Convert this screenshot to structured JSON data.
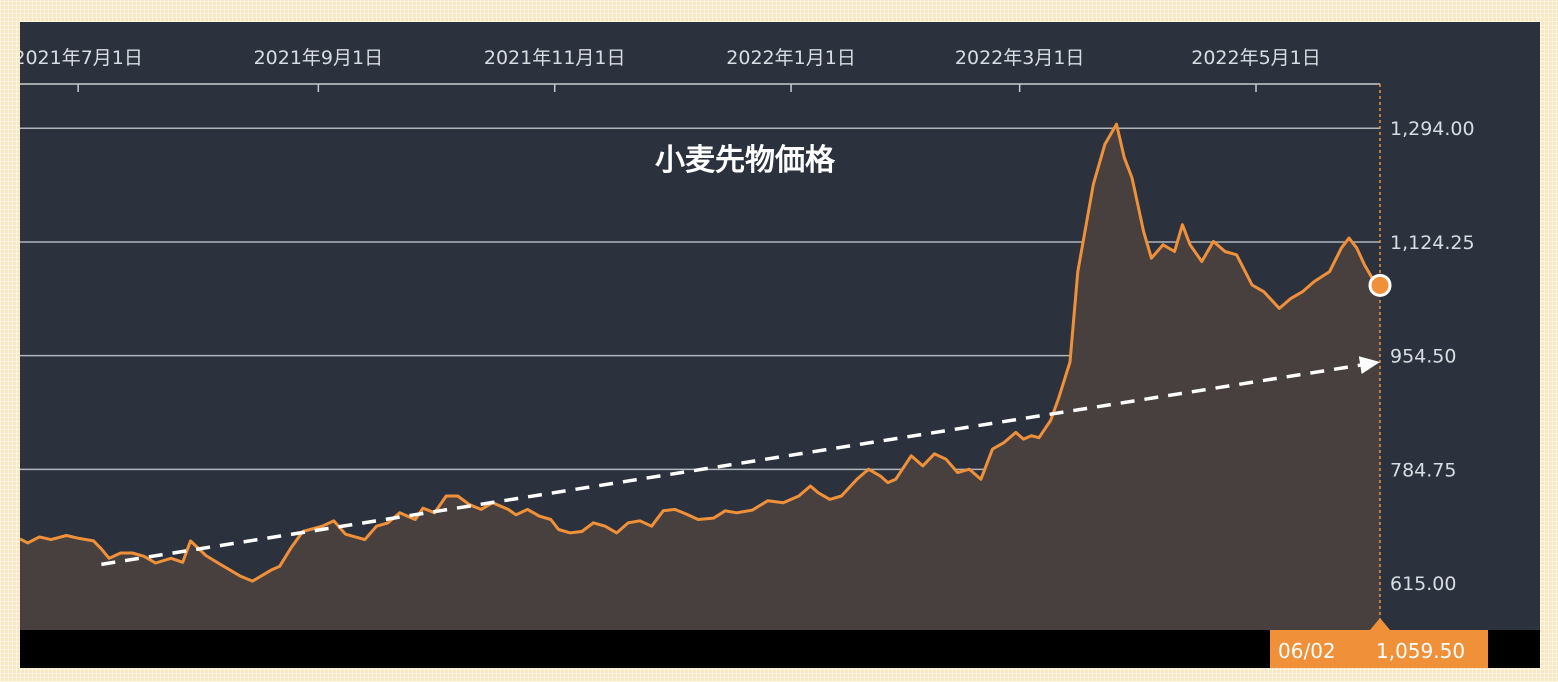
{
  "colors": {
    "background": "#2b323d",
    "line": "#f0913a",
    "area": "#48403f",
    "grid": "#c8ccd2",
    "trend": "#ffffff",
    "readout_bg": "#f0913a",
    "bottom_bar": "#000000"
  },
  "chart_data": {
    "type": "area",
    "title": "小麦先物価格",
    "xlabel": "",
    "ylabel": "",
    "x_tick_labels": [
      "2021年7月1日",
      "2021年9月1日",
      "2021年11月1日",
      "2022年1月1日",
      "2022年3月1日",
      "2022年5月1日"
    ],
    "x_tick_dates": [
      "2021-07-01",
      "2021-09-01",
      "2021-11-01",
      "2022-01-01",
      "2022-03-01",
      "2022-05-01"
    ],
    "y_ticks": [
      "1,294.00",
      "1,124.25",
      "954.50",
      "784.75",
      "615.00"
    ],
    "y_tick_values": [
      1294,
      1124.25,
      954.5,
      784.75,
      615
    ],
    "xlim": [
      "2021-06-16",
      "2022-06-02"
    ],
    "ylim": [
      545,
      1360
    ],
    "grid": true,
    "series": [
      {
        "name": "",
        "points": [
          [
            "2021-06-16",
            681
          ],
          [
            "2021-06-18",
            675
          ],
          [
            "2021-06-21",
            684
          ],
          [
            "2021-06-24",
            680
          ],
          [
            "2021-06-28",
            686
          ],
          [
            "2021-07-01",
            682
          ],
          [
            "2021-07-05",
            678
          ],
          [
            "2021-07-07",
            666
          ],
          [
            "2021-07-09",
            652
          ],
          [
            "2021-07-12",
            660
          ],
          [
            "2021-07-15",
            660
          ],
          [
            "2021-07-18",
            655
          ],
          [
            "2021-07-21",
            645
          ],
          [
            "2021-07-25",
            652
          ],
          [
            "2021-07-28",
            646
          ],
          [
            "2021-07-30",
            678
          ],
          [
            "2021-08-03",
            656
          ],
          [
            "2021-08-07",
            642
          ],
          [
            "2021-08-12",
            625
          ],
          [
            "2021-08-15",
            618
          ],
          [
            "2021-08-20",
            635
          ],
          [
            "2021-08-22",
            640
          ],
          [
            "2021-08-25",
            668
          ],
          [
            "2021-08-28",
            692
          ],
          [
            "2021-09-02",
            700
          ],
          [
            "2021-09-05",
            708
          ],
          [
            "2021-09-08",
            688
          ],
          [
            "2021-09-13",
            680
          ],
          [
            "2021-09-16",
            700
          ],
          [
            "2021-09-19",
            705
          ],
          [
            "2021-09-22",
            720
          ],
          [
            "2021-09-26",
            710
          ],
          [
            "2021-09-28",
            727
          ],
          [
            "2021-10-01",
            720
          ],
          [
            "2021-10-04",
            745
          ],
          [
            "2021-10-07",
            745
          ],
          [
            "2021-10-10",
            732
          ],
          [
            "2021-10-13",
            725
          ],
          [
            "2021-10-16",
            735
          ],
          [
            "2021-10-20",
            725
          ],
          [
            "2021-10-22",
            717
          ],
          [
            "2021-10-25",
            725
          ],
          [
            "2021-10-28",
            715
          ],
          [
            "2021-10-31",
            710
          ],
          [
            "2021-11-02",
            695
          ],
          [
            "2021-11-05",
            690
          ],
          [
            "2021-11-08",
            692
          ],
          [
            "2021-11-11",
            705
          ],
          [
            "2021-11-14",
            700
          ],
          [
            "2021-11-17",
            690
          ],
          [
            "2021-11-20",
            705
          ],
          [
            "2021-11-23",
            708
          ],
          [
            "2021-11-26",
            700
          ],
          [
            "2021-11-29",
            723
          ],
          [
            "2021-12-02",
            725
          ],
          [
            "2021-12-05",
            718
          ],
          [
            "2021-12-08",
            710
          ],
          [
            "2021-12-12",
            712
          ],
          [
            "2021-12-15",
            723
          ],
          [
            "2021-12-18",
            720
          ],
          [
            "2021-12-22",
            724
          ],
          [
            "2021-12-26",
            738
          ],
          [
            "2021-12-30",
            735
          ],
          [
            "2022-01-03",
            745
          ],
          [
            "2022-01-06",
            760
          ],
          [
            "2022-01-08",
            750
          ],
          [
            "2022-01-11",
            740
          ],
          [
            "2022-01-14",
            745
          ],
          [
            "2022-01-18",
            770
          ],
          [
            "2022-01-21",
            785
          ],
          [
            "2022-01-24",
            775
          ],
          [
            "2022-01-26",
            765
          ],
          [
            "2022-01-28",
            770
          ],
          [
            "2022-02-01",
            805
          ],
          [
            "2022-02-04",
            790
          ],
          [
            "2022-02-07",
            808
          ],
          [
            "2022-02-10",
            800
          ],
          [
            "2022-02-13",
            780
          ],
          [
            "2022-02-16",
            785
          ],
          [
            "2022-02-19",
            770
          ],
          [
            "2022-02-22",
            815
          ],
          [
            "2022-02-25",
            825
          ],
          [
            "2022-02-28",
            840
          ],
          [
            "2022-03-02",
            830
          ],
          [
            "2022-03-04",
            835
          ],
          [
            "2022-03-06",
            832
          ],
          [
            "2022-03-09",
            858
          ],
          [
            "2022-03-11",
            890
          ],
          [
            "2022-03-14",
            945
          ],
          [
            "2022-03-16",
            1080
          ],
          [
            "2022-03-20",
            1210
          ],
          [
            "2022-03-23",
            1270
          ],
          [
            "2022-03-26",
            1300
          ],
          [
            "2022-03-28",
            1250
          ],
          [
            "2022-03-30",
            1220
          ],
          [
            "2022-04-02",
            1140
          ],
          [
            "2022-04-04",
            1100
          ],
          [
            "2022-04-07",
            1120
          ],
          [
            "2022-04-10",
            1110
          ],
          [
            "2022-04-12",
            1150
          ],
          [
            "2022-04-14",
            1120
          ],
          [
            "2022-04-17",
            1095
          ],
          [
            "2022-04-20",
            1125
          ],
          [
            "2022-04-23",
            1110
          ],
          [
            "2022-04-26",
            1105
          ],
          [
            "2022-04-30",
            1060
          ],
          [
            "2022-05-03",
            1050
          ],
          [
            "2022-05-07",
            1025
          ],
          [
            "2022-05-10",
            1040
          ],
          [
            "2022-05-13",
            1050
          ],
          [
            "2022-05-16",
            1065
          ],
          [
            "2022-05-20",
            1080
          ],
          [
            "2022-05-23",
            1115
          ],
          [
            "2022-05-25",
            1130
          ],
          [
            "2022-05-27",
            1115
          ],
          [
            "2022-05-29",
            1090
          ],
          [
            "2022-05-31",
            1070
          ],
          [
            "2022-06-02",
            1059.5
          ]
        ]
      }
    ],
    "trendline": {
      "from": [
        "2021-07-07",
        643
      ],
      "to": [
        "2022-06-02",
        945
      ]
    },
    "readout": {
      "date": "06/02",
      "value": "1,059.50"
    }
  }
}
